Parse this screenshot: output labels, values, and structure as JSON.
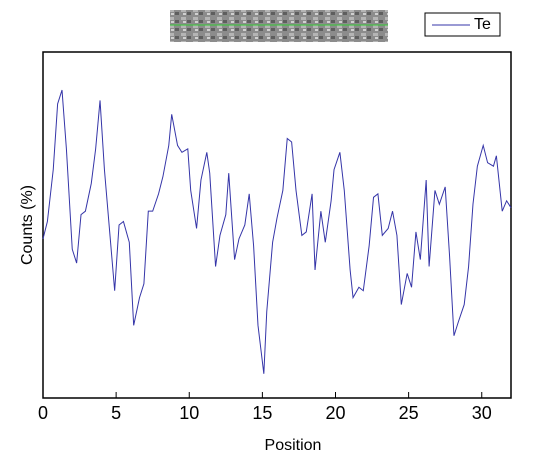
{
  "chart_data": {
    "type": "line",
    "x_label": "Position",
    "y_label": "Counts (%)",
    "xlim": [
      0,
      32
    ],
    "xticks": [
      0,
      5,
      10,
      15,
      20,
      25,
      30
    ],
    "ylim": [
      0,
      100
    ],
    "legend": "top-right",
    "x": [
      0,
      0.3,
      0.7,
      1.0,
      1.3,
      1.6,
      2.0,
      2.3,
      2.6,
      2.9,
      3.3,
      3.6,
      3.9,
      4.2,
      4.6,
      4.9,
      5.2,
      5.5,
      5.9,
      6.2,
      6.6,
      6.9,
      7.2,
      7.5,
      7.9,
      8.2,
      8.6,
      8.8,
      9.2,
      9.5,
      9.9,
      10.1,
      10.5,
      10.8,
      11.2,
      11.4,
      11.8,
      12.1,
      12.5,
      12.7,
      13.1,
      13.4,
      13.8,
      14.1,
      14.4,
      14.7,
      15.1,
      15.3,
      15.7,
      16.0,
      16.4,
      16.7,
      17.0,
      17.3,
      17.7,
      18.0,
      18.4,
      18.6,
      19.0,
      19.3,
      19.7,
      19.9,
      20.3,
      20.6,
      21.0,
      21.2,
      21.6,
      21.9,
      22.3,
      22.6,
      22.9,
      23.2,
      23.6,
      23.9,
      24.2,
      24.5,
      24.9,
      25.2,
      25.5,
      25.8,
      26.2,
      26.4,
      26.8,
      27.1,
      27.5,
      27.8,
      28.1,
      28.4,
      28.8,
      29.1,
      29.4,
      29.7,
      30.1,
      30.4,
      30.8,
      31.0,
      31.4,
      31.7,
      32.0
    ],
    "series": [
      {
        "name": "Te",
        "color": "#3535a8",
        "values": [
          46,
          51,
          66,
          85,
          89,
          72,
          43,
          39,
          53,
          54,
          62,
          72,
          86,
          66,
          46,
          31,
          50,
          51,
          45,
          21,
          29,
          33,
          54,
          54,
          59,
          64,
          73,
          82,
          73,
          71,
          72,
          60,
          49,
          63,
          71,
          65,
          38,
          47,
          53,
          65,
          40,
          46,
          50,
          59,
          44,
          21,
          7,
          25,
          45,
          52,
          60,
          75,
          74,
          60,
          47,
          48,
          59,
          37,
          54,
          45,
          57,
          66,
          71,
          60,
          37,
          29,
          32,
          31,
          44,
          58,
          59,
          47,
          49,
          54,
          47,
          27,
          36,
          32,
          48,
          40,
          63,
          38,
          60,
          56,
          61,
          41,
          18,
          22,
          27,
          38,
          56,
          67,
          73,
          68,
          67,
          70,
          54,
          57,
          55
        ]
      }
    ]
  }
}
